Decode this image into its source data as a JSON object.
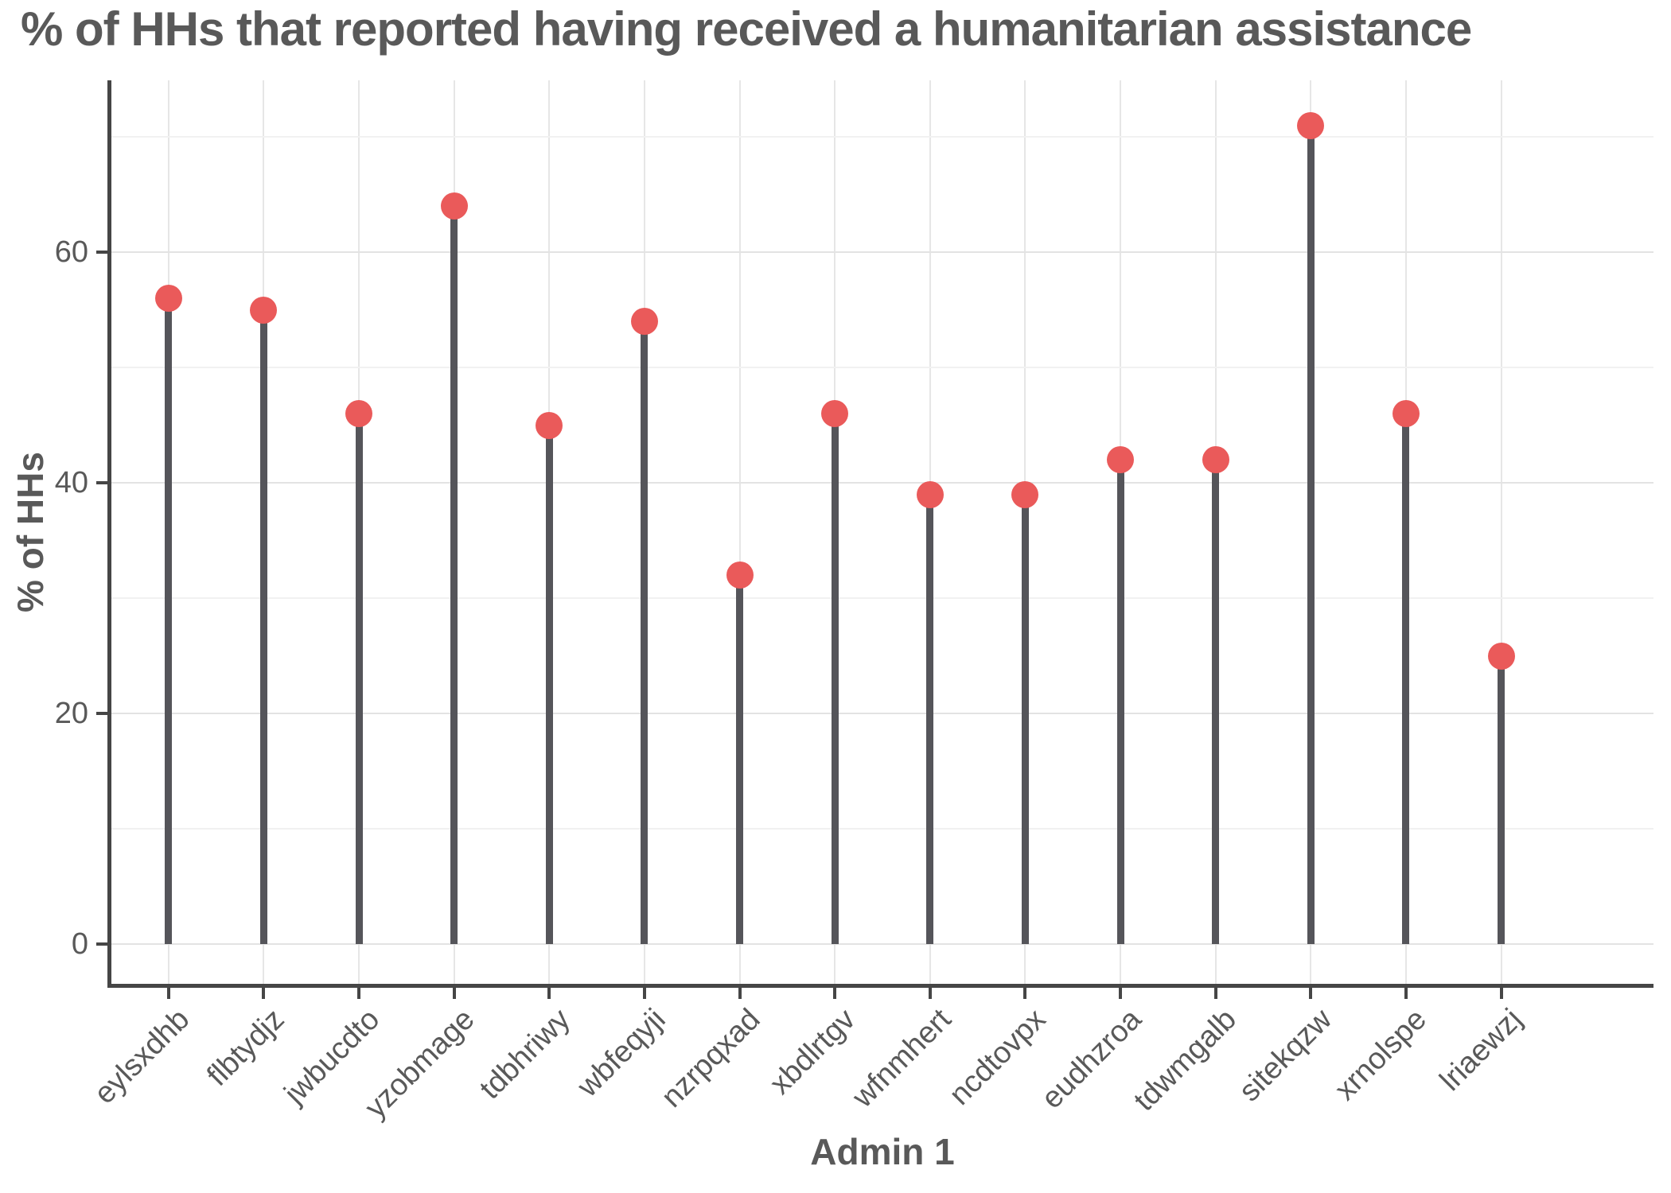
{
  "title": "% of HHs that reported having received a humanitarian assistance",
  "chart_data": {
    "type": "bar",
    "style": "lollipop",
    "categories": [
      "eylsxdhb",
      "flbtydjz",
      "jwbucdto",
      "yzobmage",
      "tdbhriwy",
      "wbfeqyji",
      "nzrpqxad",
      "xbdlrtgv",
      "wfnmhert",
      "ncdtovpx",
      "eudhzroa",
      "tdwmgalb",
      "sitekqzw",
      "xrnolspe",
      "lriaewzj"
    ],
    "values": [
      56,
      55,
      46,
      64,
      45,
      54,
      32,
      46,
      39,
      39,
      42,
      42,
      71,
      46,
      25
    ],
    "title": "% of HHs that reported having received a humanitarian assistance",
    "xlabel": "Admin 1",
    "ylabel": "% of HHs",
    "ylim": [
      -3.45,
      74.9
    ],
    "yticks": [
      0,
      20,
      40,
      60
    ],
    "minor_gridlines": [
      10,
      30,
      50,
      70
    ],
    "grid": "on",
    "legend": "none"
  },
  "colors": {
    "dot": "#ea5a5a",
    "stem": "#55555a",
    "axis_line": "#464646",
    "text": "#595959",
    "grid_major": "#e3e3e3",
    "grid_minor": "#f1f1f1",
    "grid_vertical": "#e6e6e6",
    "background": "#ffffff"
  }
}
